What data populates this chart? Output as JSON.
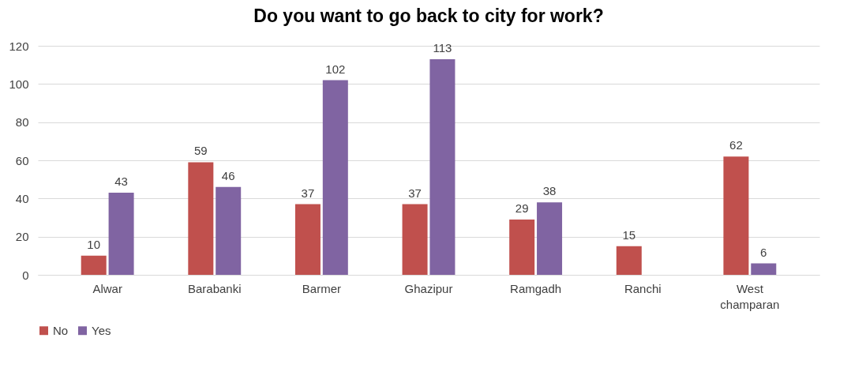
{
  "chart_data": {
    "type": "bar",
    "title": "Do you want to go back to city for work?",
    "categories": [
      "Alwar",
      "Barabanki",
      "Barmer",
      "Ghazipur",
      "Ramgadh",
      "Ranchi",
      "West champaran"
    ],
    "series": [
      {
        "name": "No",
        "color": "#c0504d",
        "values": [
          10,
          59,
          37,
          37,
          29,
          15,
          62
        ]
      },
      {
        "name": "Yes",
        "color": "#8064a2",
        "values": [
          43,
          46,
          102,
          113,
          38,
          null,
          6
        ]
      }
    ],
    "ylim": [
      0,
      120
    ],
    "yticks": [
      0,
      20,
      40,
      60,
      80,
      100,
      120
    ],
    "grid": "y",
    "legend": "bottom",
    "data_labels": true
  }
}
